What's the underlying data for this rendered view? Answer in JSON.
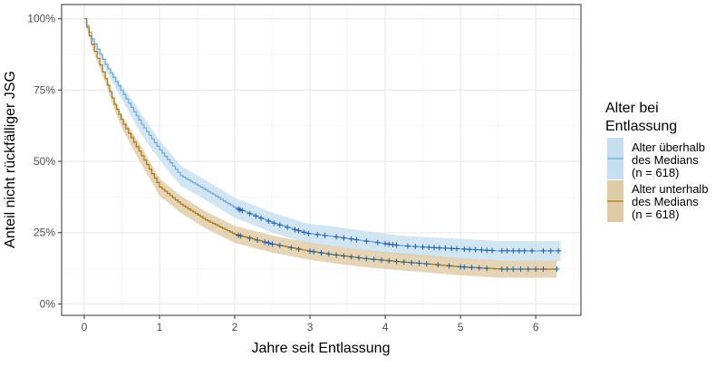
{
  "chart_data": {
    "type": "line",
    "subtype": "kaplan-meier survival curves with confidence bands and censoring marks",
    "title": "",
    "xlabel": "Jahre seit Entlassung",
    "ylabel": "Anteil nicht rückfälliger JSG",
    "xlim": [
      -0.3,
      6.6
    ],
    "ylim": [
      -0.04,
      1.05
    ],
    "x_ticks": [
      0,
      1,
      2,
      3,
      4,
      5,
      6
    ],
    "x_tick_labels": [
      "0",
      "1",
      "2",
      "3",
      "4",
      "5",
      "6"
    ],
    "y_ticks": [
      0,
      0.25,
      0.5,
      0.75,
      1
    ],
    "y_tick_labels": [
      "0%",
      "25%",
      "50%",
      "75%",
      "100%"
    ],
    "grid": true,
    "legend": {
      "position": "right",
      "title_lines": [
        "Alter bei",
        "Entlassung"
      ]
    },
    "series": [
      {
        "name_lines": [
          "Alter überhalb",
          "des Medians",
          "(n = 618)"
        ],
        "line_color": "#6fa8d6",
        "band_color": "#c6dff0",
        "censor_color": "#1f5fa8",
        "x": [
          0,
          0.1,
          0.28,
          0.52,
          0.76,
          1.0,
          1.28,
          1.61,
          1.98,
          2.5,
          2.97,
          3.3,
          3.7,
          4.18,
          4.6,
          5.0,
          5.5,
          6.33
        ],
        "y": [
          1.0,
          0.93,
          0.84,
          0.734,
          0.63,
          0.54,
          0.45,
          0.4,
          0.34,
          0.285,
          0.247,
          0.237,
          0.222,
          0.205,
          0.198,
          0.193,
          0.186,
          0.186
        ],
        "ci_halfwidth": 0.035,
        "censor_times": [
          2.05,
          2.07,
          2.1,
          2.2,
          2.28,
          2.35,
          2.45,
          2.52,
          2.6,
          2.7,
          2.8,
          2.85,
          2.92,
          2.98,
          3.1,
          3.2,
          3.35,
          3.45,
          3.55,
          3.62,
          3.75,
          3.9,
          4.0,
          4.05,
          4.1,
          4.15,
          4.3,
          4.4,
          4.5,
          4.58,
          4.65,
          4.72,
          4.8,
          4.88,
          4.95,
          5.05,
          5.12,
          5.2,
          5.28,
          5.35,
          5.42,
          5.55,
          5.62,
          5.7,
          5.78,
          5.85,
          5.95,
          6.1,
          6.2,
          6.3
        ]
      },
      {
        "name_lines": [
          "Alter unterhalb",
          "des Medians",
          "(n = 618)"
        ],
        "line_color": "#a8760f",
        "band_color": "#dfcba4",
        "censor_color": "#1f5fa8",
        "x": [
          0,
          0.1,
          0.28,
          0.4,
          0.52,
          0.76,
          1.0,
          1.28,
          1.61,
          2.0,
          2.5,
          2.97,
          3.3,
          3.7,
          4.1,
          4.58,
          5.0,
          5.55,
          6.28
        ],
        "y": [
          1.0,
          0.91,
          0.79,
          0.7,
          0.63,
          0.52,
          0.41,
          0.35,
          0.295,
          0.244,
          0.21,
          0.186,
          0.173,
          0.16,
          0.15,
          0.14,
          0.13,
          0.122,
          0.122
        ],
        "ci_halfwidth": 0.03,
        "censor_times": [
          2.05,
          2.08,
          2.2,
          2.3,
          2.4,
          2.45,
          2.5,
          2.6,
          2.75,
          2.85,
          3.0,
          3.05,
          3.15,
          3.25,
          3.35,
          3.45,
          3.55,
          3.65,
          3.75,
          3.85,
          3.95,
          4.05,
          4.15,
          4.25,
          4.35,
          4.45,
          4.55,
          4.7,
          4.85,
          5.0,
          5.05,
          5.15,
          5.25,
          5.35,
          5.55,
          5.62,
          5.7,
          5.8,
          5.9,
          6.0,
          6.1,
          6.28
        ]
      }
    ]
  }
}
